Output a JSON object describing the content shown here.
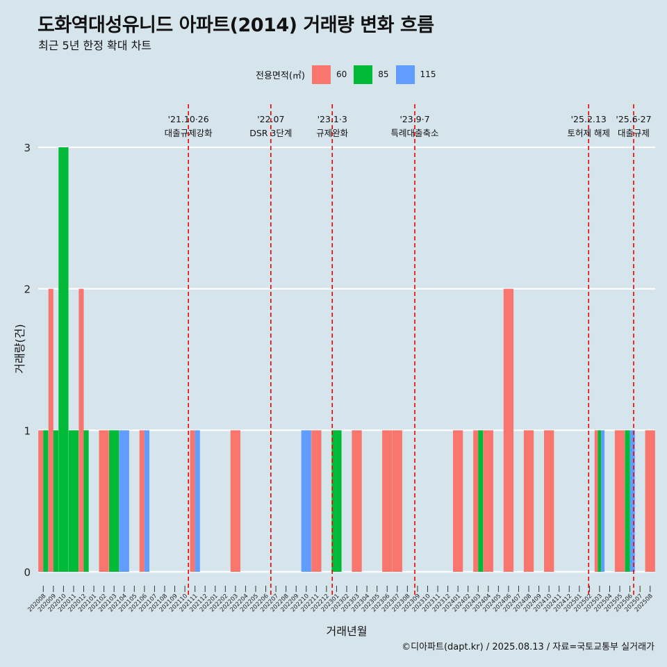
{
  "title": "도화역대성유니드 아파트(2014) 거래량 변화 흐름",
  "subtitle": "최근 5년 한정 확대 차트",
  "caption": "©디아파트(dapt.kr) / 2025.08.13 / 자료=국토교통부 실거래가",
  "legend": {
    "title": "전용면적(㎡)",
    "items": [
      {
        "label": "60",
        "color": "#f8766d"
      },
      {
        "label": "85",
        "color": "#00ba38"
      },
      {
        "label": "115",
        "color": "#619cff"
      }
    ]
  },
  "chart_data": {
    "type": "bar",
    "xlabel": "거래년월",
    "ylabel": "거래량(건)",
    "ylim": [
      0,
      3
    ],
    "yticks": [
      0,
      1,
      2,
      3
    ],
    "grid": "horizontal",
    "legend_position": "top",
    "categories": [
      "202008",
      "202009",
      "202010",
      "202011",
      "202012",
      "202101",
      "202102",
      "202103",
      "202104",
      "202105",
      "202106",
      "202107",
      "202108",
      "202109",
      "202110",
      "202111",
      "202112",
      "202201",
      "202202",
      "202203",
      "202204",
      "202205",
      "202206",
      "202207",
      "202208",
      "202209",
      "202210",
      "202211",
      "202212",
      "202301",
      "202302",
      "202303",
      "202304",
      "202305",
      "202306",
      "202307",
      "202308",
      "202309",
      "202310",
      "202311",
      "202312",
      "202401",
      "202402",
      "202403",
      "202404",
      "202405",
      "202406",
      "202407",
      "202408",
      "202409",
      "202410",
      "202411",
      "202412",
      "202501",
      "202502",
      "202503",
      "202504",
      "202505",
      "202506",
      "202507",
      "202508"
    ],
    "series": [
      {
        "name": "60",
        "color": "#f8766d",
        "values": [
          1,
          2,
          0,
          0,
          2,
          0,
          1,
          0,
          0,
          0,
          1,
          0,
          0,
          0,
          0,
          1,
          0,
          0,
          0,
          1,
          0,
          0,
          0,
          0,
          0,
          0,
          0,
          1,
          0,
          0,
          0,
          1,
          0,
          0,
          1,
          1,
          0,
          0,
          0,
          0,
          0,
          1,
          0,
          1,
          1,
          0,
          2,
          0,
          1,
          0,
          1,
          0,
          0,
          0,
          0,
          1,
          0,
          1,
          0,
          0,
          1
        ]
      },
      {
        "name": "85",
        "color": "#00ba38",
        "values": [
          1,
          1,
          3,
          1,
          1,
          0,
          0,
          1,
          0,
          0,
          0,
          0,
          0,
          0,
          0,
          0,
          0,
          0,
          0,
          0,
          0,
          0,
          0,
          0,
          0,
          0,
          0,
          0,
          0,
          1,
          0,
          0,
          0,
          0,
          0,
          0,
          0,
          0,
          0,
          0,
          0,
          0,
          0,
          1,
          0,
          0,
          0,
          0,
          0,
          0,
          0,
          0,
          0,
          0,
          0,
          1,
          0,
          0,
          1,
          0,
          0
        ]
      },
      {
        "name": "115",
        "color": "#619cff",
        "values": [
          0,
          0,
          0,
          0,
          0,
          0,
          0,
          0,
          1,
          0,
          1,
          0,
          0,
          0,
          0,
          1,
          0,
          0,
          0,
          0,
          0,
          0,
          0,
          0,
          0,
          0,
          1,
          0,
          0,
          0,
          0,
          0,
          0,
          0,
          0,
          0,
          0,
          0,
          0,
          0,
          0,
          0,
          0,
          0,
          0,
          0,
          0,
          0,
          0,
          0,
          0,
          0,
          0,
          0,
          0,
          1,
          0,
          0,
          1,
          0,
          0
        ]
      }
    ],
    "annotations": [
      {
        "date": "2021-10-26",
        "x": "202110",
        "offset": 0.85,
        "line1": "'21.10·26",
        "line2": "대출규제강화"
      },
      {
        "date": "2022-07",
        "x": "202207",
        "offset": 0.0,
        "line1": "'22.07",
        "line2": "DSR 3단계"
      },
      {
        "date": "2023-01-03",
        "x": "202301",
        "offset": 0.07,
        "line1": "'23.1·3",
        "line2": "규제완화"
      },
      {
        "date": "2023-09-07",
        "x": "202309",
        "offset": 0.23,
        "line1": "'23.9·7",
        "line2": "특례대출축소"
      },
      {
        "date": "2025-02-13",
        "x": "202502",
        "offset": 0.42,
        "line1": "'25.2.13",
        "line2": "토허제 해제"
      },
      {
        "date": "2025-06-27",
        "x": "202506",
        "offset": 0.87,
        "line1": "'25.6·27",
        "line2": "대출규제"
      }
    ],
    "annotation_color": "#ee0000"
  }
}
